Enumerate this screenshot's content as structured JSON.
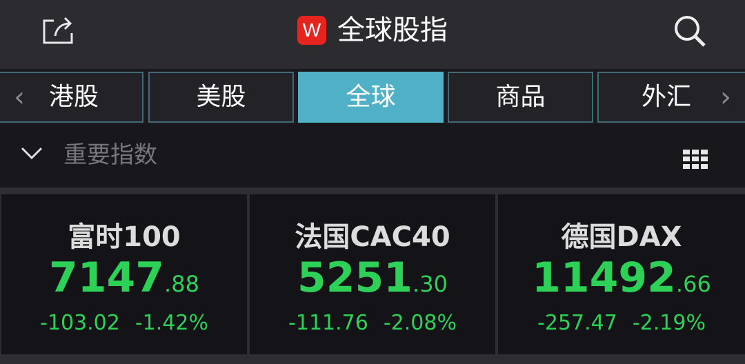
{
  "header": {
    "title": "全球股指",
    "logo": "W",
    "share_icon": "share-icon",
    "search_icon": "search-icon"
  },
  "tabs": [
    {
      "label": "港股"
    },
    {
      "label": "美股"
    },
    {
      "label": "全球",
      "active": true
    },
    {
      "label": "商品"
    },
    {
      "label": "外汇"
    }
  ],
  "section": {
    "title": "重要指数"
  },
  "colors": {
    "down": "#2ed158",
    "accent": "#4fb0c6",
    "logo": "#e5231f"
  },
  "indices": [
    {
      "name": "富时100",
      "price_int": "7147",
      "price_dec": ".88",
      "change": "-103.02",
      "pct": "-1.42%"
    },
    {
      "name": "法国CAC40",
      "price_int": "5251",
      "price_dec": ".30",
      "change": "-111.76",
      "pct": "-2.08%"
    },
    {
      "name": "德国DAX",
      "price_int": "11492",
      "price_dec": ".66",
      "change": "-257.47",
      "pct": "-2.19%"
    }
  ]
}
